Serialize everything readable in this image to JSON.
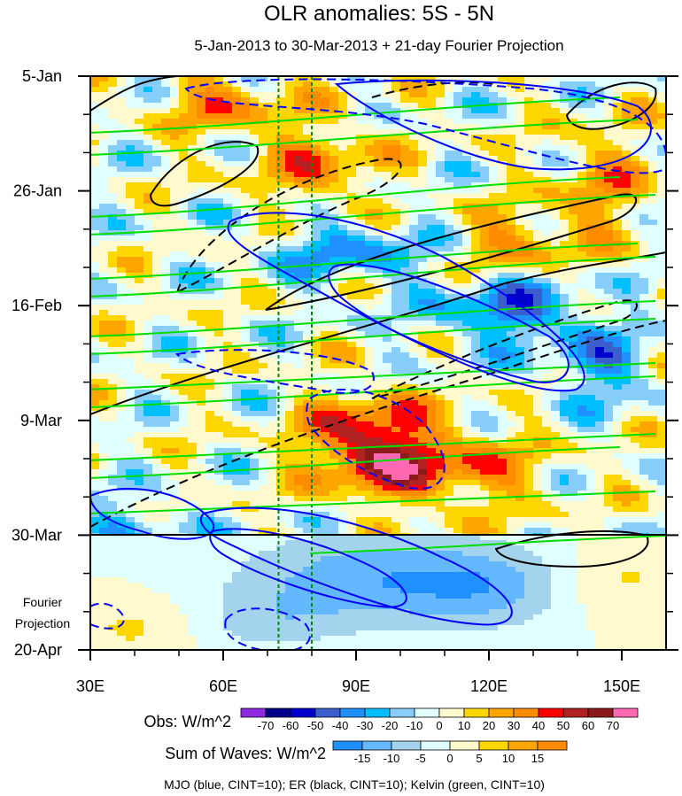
{
  "title": "OLR anomalies: 5S - 5N",
  "subtitle": "5-Jan-2013 to 30-Mar-2013 + 21-day Fourier Projection",
  "projection_label_line1": "Fourier",
  "projection_label_line2": "Projection",
  "footer": "MJO (blue, CINT=10); ER (black, CINT=10); Kelvin (green, CINT=10)",
  "colorbar_obs": {
    "label": "Obs: W/m^2",
    "ticks": [
      "-70",
      "-60",
      "-50",
      "-40",
      "-30",
      "-20",
      "-10",
      "0",
      "10",
      "20",
      "30",
      "40",
      "50",
      "60",
      "70"
    ],
    "colors": [
      "#8a2be2",
      "#00008b",
      "#0000cd",
      "#3a5fcd",
      "#1e90ff",
      "#00bfff",
      "#87cefa",
      "#e0ffff",
      "#fffacd",
      "#ffd700",
      "#ffa500",
      "#ff8c00",
      "#ff0000",
      "#b22222",
      "#8b1a1a",
      "#ff69b4"
    ]
  },
  "colorbar_waves": {
    "label": "Sum of Waves: W/m^2",
    "ticks": [
      "-15",
      "-10",
      "-5",
      "0",
      "5",
      "10",
      "15"
    ],
    "colors": [
      "#1e90ff",
      "#63b8ff",
      "#a4d3ee",
      "#e0ffff",
      "#fffacd",
      "#ffd700",
      "#ffa500",
      "#ff8c00"
    ]
  },
  "chart_data": {
    "type": "heatmap",
    "title": "OLR anomalies: 5S - 5N",
    "subtitle": "5-Jan-2013 to 30-Mar-2013 + 21-day Fourier Projection",
    "x_ticks": [
      "30E",
      "60E",
      "90E",
      "120E",
      "150E"
    ],
    "x_tick_values": [
      30,
      60,
      90,
      120,
      150
    ],
    "xlim": [
      30,
      160
    ],
    "y_ticks": [
      "5-Jan",
      "26-Jan",
      "16-Feb",
      "9-Mar",
      "30-Mar",
      "20-Apr"
    ],
    "y_tick_days": [
      0,
      21,
      42,
      63,
      84,
      105
    ],
    "ylim_days": [
      0,
      105
    ],
    "observation_end": "30-Mar",
    "reference_longitudes": [
      72.5,
      80
    ],
    "contours": [
      {
        "name": "MJO",
        "color": "#0000ff",
        "cint": 10
      },
      {
        "name": "ER",
        "color": "#000000",
        "cint": 10
      },
      {
        "name": "Kelvin",
        "color": "#00dd00",
        "cint": 10
      }
    ],
    "grid": false
  }
}
